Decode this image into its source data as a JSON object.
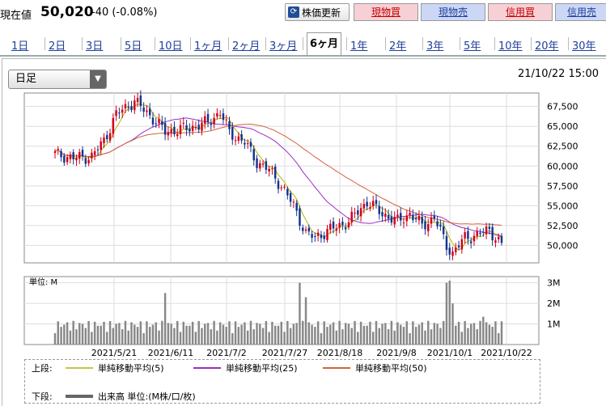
{
  "header": {
    "price_label": "現在値",
    "price_value": "50,020",
    "price_change": "-40 (-0.08%)",
    "update_label": "株価更新",
    "buttons": [
      "現物買",
      "現物売",
      "信用買",
      "信用売"
    ]
  },
  "tabs": [
    "1日",
    "2日",
    "3日",
    "5日",
    "10日",
    "1ヶ月",
    "2ヶ月",
    "3ヶ月",
    "6ヶ月",
    "1年",
    "2年",
    "3年",
    "5年",
    "10年",
    "20年",
    "30年"
  ],
  "active_tab": "6ヶ月",
  "selector": {
    "value": "日足"
  },
  "datetime": "21/10/22 15:00",
  "volume_unit_label": "単位: M",
  "legend": {
    "upper_label": "上段:",
    "ma5": "単純移動平均(5)",
    "ma25": "単純移動平均(25)",
    "ma50": "単純移動平均(50)",
    "lower_label": "下段:",
    "volume": "出来高 単位:(M株/口/枚)"
  },
  "colors": {
    "up": "#d0001b",
    "down": "#12358f",
    "ma5": "#b5b500",
    "ma25": "#9b2ec7",
    "ma50": "#d2643c",
    "volume": "#888888"
  },
  "chart_data": {
    "type": "candlestick",
    "price_ticks": [
      "67,500",
      "65,000",
      "62,500",
      "60,000",
      "57,500",
      "55,000",
      "52,500",
      "50,000"
    ],
    "price_tick_values": [
      67500,
      65000,
      62500,
      60000,
      57500,
      55000,
      52500,
      50000
    ],
    "volume_ticks": [
      "3M",
      "2M",
      "1M"
    ],
    "volume_tick_values": [
      3,
      2,
      1
    ],
    "x_tick_labels": [
      "2021/5/21",
      "2021/6/11",
      "2021/7/2",
      "2021/7/27",
      "2021/8/18",
      "2021/9/8",
      "2021/10/1",
      "2021/10/22"
    ],
    "ylim": [
      47800,
      69200
    ],
    "vol_ylim": [
      0,
      3.3
    ]
  }
}
